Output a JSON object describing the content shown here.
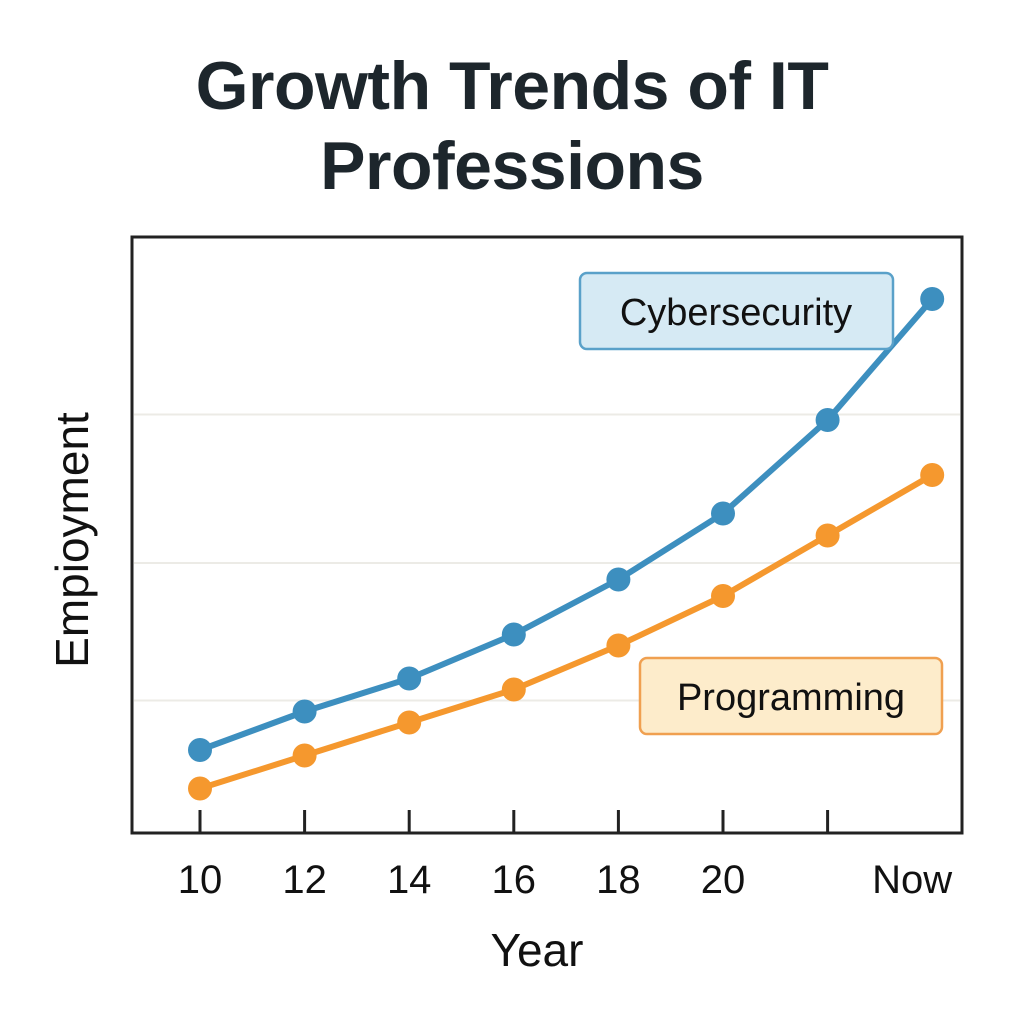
{
  "chart_data": {
    "type": "line",
    "title": [
      "Growth Trends of IT",
      "Professions"
    ],
    "xlabel": "Year",
    "ylabel": "Empioyment",
    "categories": [
      "10",
      "12",
      "14",
      "16",
      "18",
      "20",
      "",
      "Now"
    ],
    "x_tick_labels": [
      "10",
      "12",
      "14",
      "16",
      "18",
      "20",
      "Now"
    ],
    "ylim": [
      0,
      10
    ],
    "grid": true,
    "series": [
      {
        "name": "Cybersecurity",
        "color": "#3d8fbf",
        "values": [
          1.0,
          1.35,
          1.65,
          2.05,
          2.55,
          3.15,
          4.0,
          5.1
        ]
      },
      {
        "name": "Programming",
        "color": "#f5982e",
        "values": [
          0.65,
          0.95,
          1.25,
          1.55,
          1.95,
          2.4,
          2.95,
          3.5
        ]
      }
    ],
    "legend_placement": "inline-labels"
  }
}
